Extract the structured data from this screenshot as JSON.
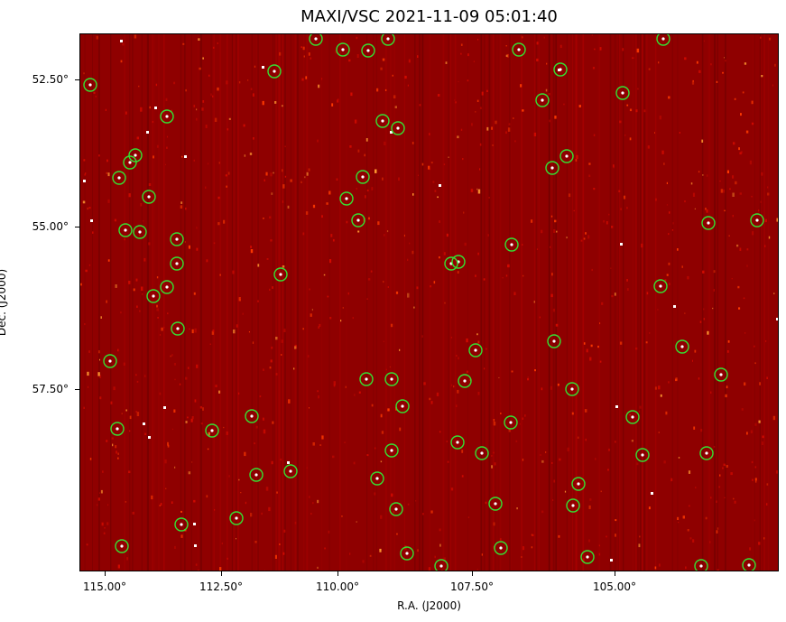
{
  "title": "MAXI/VSC 2021-11-09 05:01:40",
  "axes": {
    "xlabel": "R.A. (J2000)",
    "ylabel": "Dec. (J2000)",
    "xticks": [
      "115.00°",
      "112.50°",
      "110.00°",
      "107.50°",
      "105.00°"
    ],
    "yticks": [
      "52.50°",
      "55.00°",
      "57.50°"
    ]
  },
  "colors": {
    "background": "#8f0000",
    "circle": "#33e233",
    "star": "#ffffff"
  }
}
